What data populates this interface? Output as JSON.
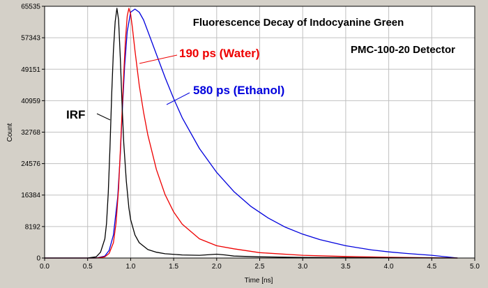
{
  "chart_data": {
    "type": "line",
    "title": "Fluorescence Decay of Indocyanine Green",
    "subtitle": "PMC-100-20 Detector",
    "xlabel": "Time [ns]",
    "ylabel": "Count",
    "xlim": [
      0.0,
      5.0
    ],
    "ylim": [
      0,
      65535
    ],
    "x_ticks": [
      "0.0",
      "0.5",
      "1.0",
      "1.5",
      "2.0",
      "2.5",
      "3.0",
      "3.5",
      "4.0",
      "4.5",
      "5.0"
    ],
    "y_ticks": [
      "0",
      "8192",
      "16384",
      "24576",
      "32768",
      "40959",
      "49151",
      "57343",
      "65535"
    ],
    "grid": true,
    "series": [
      {
        "name": "IRF",
        "color": "#000000",
        "x": [
          0.0,
          0.5,
          0.6,
          0.65,
          0.7,
          0.72,
          0.74,
          0.76,
          0.78,
          0.8,
          0.82,
          0.84,
          0.86,
          0.88,
          0.9,
          0.92,
          0.95,
          0.98,
          1.0,
          1.05,
          1.1,
          1.2,
          1.3,
          1.4,
          1.6,
          1.8,
          2.0,
          2.1,
          2.2,
          2.5,
          3.0,
          4.0,
          4.8
        ],
        "y": [
          0,
          0,
          300,
          1500,
          5000,
          9000,
          17000,
          29000,
          43000,
          54000,
          61500,
          65000,
          62000,
          52000,
          40000,
          30000,
          20000,
          13000,
          10000,
          6000,
          4000,
          2200,
          1500,
          1100,
          800,
          700,
          1000,
          800,
          500,
          300,
          150,
          80,
          0
        ]
      },
      {
        "name": "190 ps (Water)",
        "color": "#ee0000",
        "x": [
          0.0,
          0.6,
          0.7,
          0.75,
          0.8,
          0.83,
          0.86,
          0.88,
          0.9,
          0.92,
          0.94,
          0.96,
          0.98,
          1.0,
          1.02,
          1.05,
          1.1,
          1.15,
          1.2,
          1.3,
          1.4,
          1.5,
          1.6,
          1.8,
          2.0,
          2.2,
          2.5,
          3.0,
          3.5,
          4.0,
          4.8
        ],
        "y": [
          0,
          0,
          300,
          1200,
          4000,
          9000,
          18000,
          28000,
          38000,
          48000,
          57000,
          63000,
          65000,
          63500,
          60000,
          54000,
          45000,
          38000,
          32000,
          23000,
          16500,
          12000,
          8800,
          5000,
          3200,
          2400,
          1400,
          700,
          400,
          200,
          0
        ]
      },
      {
        "name": "580 ps (Ethanol)",
        "color": "#0000dd",
        "x": [
          0.0,
          0.6,
          0.7,
          0.75,
          0.8,
          0.85,
          0.88,
          0.9,
          0.93,
          0.96,
          1.0,
          1.05,
          1.1,
          1.15,
          1.2,
          1.3,
          1.4,
          1.5,
          1.6,
          1.8,
          2.0,
          2.2,
          2.4,
          2.6,
          2.8,
          3.0,
          3.2,
          3.5,
          3.8,
          4.0,
          4.2,
          4.5,
          4.8
        ],
        "y": [
          0,
          0,
          500,
          2000,
          6000,
          16000,
          27000,
          37000,
          50000,
          59000,
          64000,
          64800,
          64000,
          62000,
          59000,
          53000,
          47000,
          41500,
          36500,
          28500,
          22300,
          17300,
          13400,
          10400,
          8000,
          6200,
          4800,
          3200,
          2100,
          1600,
          1200,
          700,
          0
        ]
      }
    ],
    "annotations": [
      {
        "text": "IRF",
        "color": "#000000"
      },
      {
        "text": "190 ps (Water)",
        "color": "#ee0000"
      },
      {
        "text": "580 ps (Ethanol)",
        "color": "#0000dd"
      }
    ],
    "colors": {
      "plot_background": "#ffffff",
      "window_background": "#d4d0c8",
      "grid": "#c0c0c0"
    }
  }
}
